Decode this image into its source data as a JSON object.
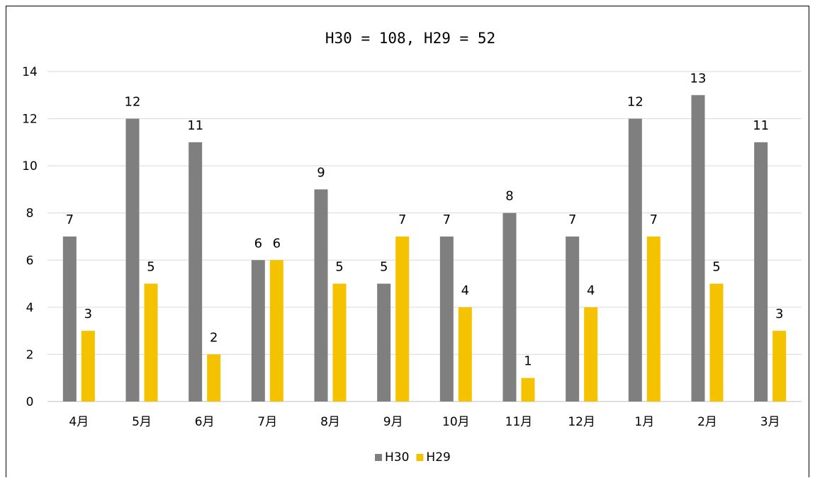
{
  "chart_data": {
    "type": "bar",
    "title": "H30 = 108, H29 = 52",
    "categories": [
      "4月",
      "5月",
      "6月",
      "7月",
      "8月",
      "9月",
      "10月",
      "11月",
      "12月",
      "1月",
      "2月",
      "3月"
    ],
    "series": [
      {
        "name": "H30",
        "color": "#7f7f7f",
        "values": [
          7,
          12,
          11,
          6,
          9,
          5,
          7,
          8,
          7,
          12,
          13,
          11
        ]
      },
      {
        "name": "H29",
        "color": "#f5c200",
        "values": [
          3,
          5,
          2,
          6,
          5,
          7,
          4,
          1,
          4,
          7,
          5,
          3
        ]
      }
    ],
    "ylim": [
      0,
      14
    ],
    "yticks": [
      0,
      2,
      4,
      6,
      8,
      10,
      12,
      14
    ],
    "grid": true,
    "data_labels": true,
    "legend": "bottom"
  }
}
